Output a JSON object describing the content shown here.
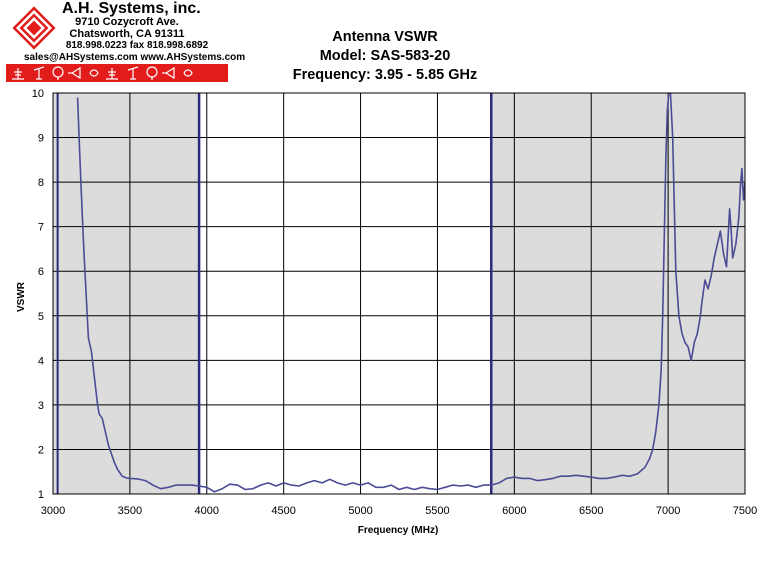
{
  "header": {
    "company": "A.H. Systems, inc.",
    "address_line1": "9710 Cozycroft Ave.",
    "address_line2": "Chatsworth, CA 91311",
    "phone": "818.998.0223 fax 818.998.6892",
    "web": "sales@AHSystems.com www.AHSystems.com",
    "brand_color": "#e21b1b"
  },
  "chart_data": {
    "type": "line",
    "title": "Antenna VSWR",
    "subtitle_model": "Model: SAS-583-20",
    "subtitle_frequency": "Frequency: 3.95 - 5.85 GHz",
    "xlabel": "Frequency (MHz)",
    "ylabel": "VSWR",
    "xlim": [
      3000,
      7500
    ],
    "ylim": [
      1,
      10
    ],
    "x_ticks": [
      "3000",
      "3500",
      "4000",
      "4500",
      "5000",
      "5500",
      "6000",
      "6500",
      "7000",
      "7500"
    ],
    "y_ticks": [
      "1",
      "2",
      "3",
      "4",
      "5",
      "6",
      "7",
      "8",
      "9",
      "10"
    ],
    "grid": true,
    "legend": "none",
    "line_color": "#4b4b96",
    "shaded_color": "#dcdcdc",
    "shaded_regions": [
      [
        3000,
        3950
      ],
      [
        5850,
        7500
      ]
    ],
    "band_markers": [
      3950,
      5850
    ],
    "series": [
      {
        "x": [
          3160,
          3170,
          3180,
          3190,
          3200,
          3215,
          3230,
          3250,
          3270,
          3290,
          3300,
          3320,
          3340,
          3360,
          3380,
          3400,
          3420,
          3450,
          3480,
          3500,
          3550,
          3600,
          3650,
          3700,
          3750,
          3800,
          3850,
          3900,
          3950,
          4000,
          4050,
          4100,
          4150,
          4200,
          4250,
          4300,
          4350,
          4400,
          4450,
          4500,
          4550,
          4600,
          4650,
          4700,
          4750,
          4800,
          4850,
          4900,
          4950,
          5000,
          5050,
          5100,
          5150,
          5200,
          5250,
          5300,
          5350,
          5400,
          5450,
          5500,
          5550,
          5600,
          5650,
          5700,
          5750,
          5800,
          5850,
          5900,
          5950,
          6000,
          6050,
          6100,
          6150,
          6200,
          6250,
          6300,
          6350,
          6400,
          6450,
          6500,
          6550,
          6600,
          6650,
          6700,
          6750,
          6800,
          6850,
          6880,
          6900,
          6920,
          6940,
          6955,
          6965,
          6975,
          6985,
          6995,
          7005,
          7015,
          7030,
          7050,
          7070,
          7090,
          7110,
          7130,
          7150,
          7170,
          7190,
          7210,
          7220,
          7240,
          7260,
          7280,
          7300,
          7320,
          7340,
          7360,
          7380,
          7400,
          7410,
          7420,
          7440,
          7460,
          7470,
          7480,
          7490,
          7500
        ],
        "y": [
          9.9,
          9.0,
          8.1,
          7.3,
          6.5,
          5.5,
          4.5,
          4.2,
          3.6,
          3.0,
          2.8,
          2.7,
          2.4,
          2.1,
          1.9,
          1.7,
          1.55,
          1.4,
          1.36,
          1.35,
          1.34,
          1.3,
          1.2,
          1.12,
          1.15,
          1.2,
          1.2,
          1.2,
          1.18,
          1.15,
          1.05,
          1.12,
          1.22,
          1.2,
          1.1,
          1.12,
          1.2,
          1.25,
          1.18,
          1.25,
          1.2,
          1.18,
          1.25,
          1.3,
          1.25,
          1.33,
          1.25,
          1.2,
          1.25,
          1.2,
          1.25,
          1.15,
          1.15,
          1.2,
          1.1,
          1.15,
          1.1,
          1.15,
          1.12,
          1.1,
          1.15,
          1.2,
          1.18,
          1.2,
          1.15,
          1.2,
          1.2,
          1.25,
          1.35,
          1.38,
          1.35,
          1.35,
          1.3,
          1.32,
          1.35,
          1.4,
          1.4,
          1.42,
          1.4,
          1.38,
          1.35,
          1.35,
          1.38,
          1.42,
          1.4,
          1.45,
          1.6,
          1.8,
          2.0,
          2.4,
          3.0,
          3.8,
          5.0,
          6.8,
          8.5,
          9.6,
          10.5,
          10.5,
          9.0,
          6.0,
          5.0,
          4.6,
          4.4,
          4.3,
          4.0,
          4.4,
          4.6,
          5.0,
          5.3,
          5.8,
          5.6,
          5.9,
          6.3,
          6.6,
          6.9,
          6.4,
          6.1,
          7.4,
          6.9,
          6.3,
          6.6,
          7.2,
          7.9,
          8.3,
          7.6,
          8.0
        ]
      }
    ]
  }
}
